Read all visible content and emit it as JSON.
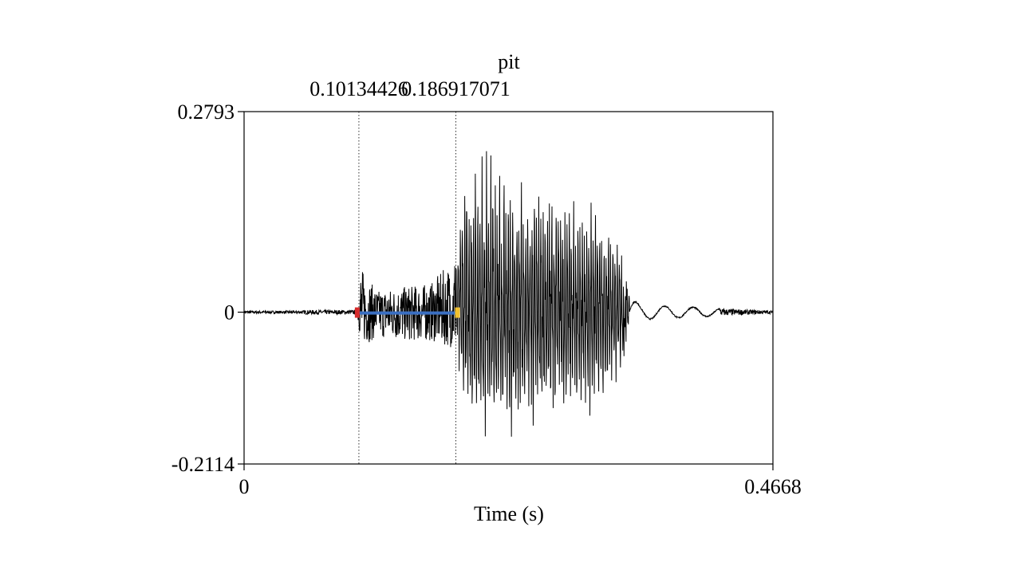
{
  "chart_data": {
    "type": "line",
    "title": "pit",
    "xlabel": "Time (s)",
    "ylabel": "",
    "xlim": [
      0,
      0.4668
    ],
    "ylim": [
      -0.2114,
      0.2793
    ],
    "x_tick_labels": [
      "0",
      "0.4668"
    ],
    "y_tick_labels": [
      "0.2793",
      "0",
      "-0.2114"
    ],
    "markers": [
      {
        "time": 0.10134426,
        "label": "0.10134426"
      },
      {
        "time": 0.1869,
        "label": "0.186917071"
      }
    ],
    "interval": {
      "start": 0.1013,
      "end": 0.1869
    },
    "envelope": [
      {
        "t": 0.0,
        "max": 0.002,
        "min": -0.002
      },
      {
        "t": 0.05,
        "max": 0.002,
        "min": -0.002
      },
      {
        "t": 0.055,
        "max": 0.003,
        "min": -0.003
      },
      {
        "t": 0.0995,
        "max": 0.003,
        "min": -0.003
      },
      {
        "t": 0.102,
        "max": 0.07,
        "min": -0.03
      },
      {
        "t": 0.107,
        "max": 0.05,
        "min": -0.045
      },
      {
        "t": 0.118,
        "max": 0.03,
        "min": -0.035
      },
      {
        "t": 0.14,
        "max": 0.035,
        "min": -0.04
      },
      {
        "t": 0.165,
        "max": 0.04,
        "min": -0.04
      },
      {
        "t": 0.185,
        "max": 0.075,
        "min": -0.05
      },
      {
        "t": 0.195,
        "max": 0.22,
        "min": -0.15
      },
      {
        "t": 0.21,
        "max": 0.27,
        "min": -0.2
      },
      {
        "t": 0.235,
        "max": 0.21,
        "min": -0.19
      },
      {
        "t": 0.27,
        "max": 0.2,
        "min": -0.17
      },
      {
        "t": 0.31,
        "max": 0.17,
        "min": -0.17
      },
      {
        "t": 0.33,
        "max": 0.12,
        "min": -0.12
      },
      {
        "t": 0.34,
        "max": 0.02,
        "min": -0.01
      },
      {
        "t": 0.35,
        "max": 0.01,
        "min": -0.01
      },
      {
        "t": 0.4668,
        "max": 0.002,
        "min": -0.002
      }
    ],
    "colors": {
      "waveform": "#000000",
      "interval_line": "#3a6fc2",
      "start_marker": "#d62b2b",
      "end_marker": "#f2c12e"
    },
    "grid": false
  }
}
